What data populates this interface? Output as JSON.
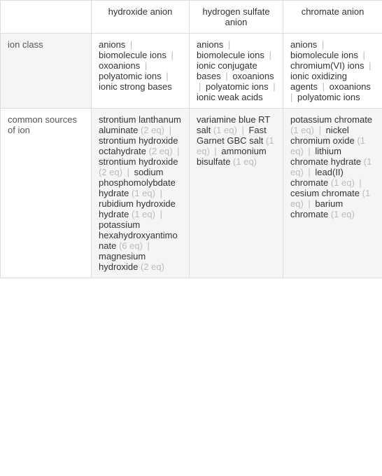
{
  "headers": {
    "col1": "hydroxide anion",
    "col2": "hydrogen sulfate anion",
    "col3": "chromate anion"
  },
  "rows": [
    {
      "label": "ion class",
      "cells": [
        [
          {
            "text": "anions"
          },
          {
            "text": "biomolecule ions"
          },
          {
            "text": "oxoanions"
          },
          {
            "text": "polyatomic ions"
          },
          {
            "text": "ionic strong bases"
          }
        ],
        [
          {
            "text": "anions"
          },
          {
            "text": "biomolecule ions"
          },
          {
            "text": "ionic conjugate bases"
          },
          {
            "text": "oxoanions"
          },
          {
            "text": "polyatomic ions"
          },
          {
            "text": "ionic weak acids"
          }
        ],
        [
          {
            "text": "anions"
          },
          {
            "text": "biomolecule ions"
          },
          {
            "text": "chromium(VI) ions"
          },
          {
            "text": "ionic oxidizing agents"
          },
          {
            "text": "oxoanions"
          },
          {
            "text": "polyatomic ions"
          }
        ]
      ]
    },
    {
      "label": "common sources of ion",
      "cells": [
        [
          {
            "text": "strontium lanthanum aluminate",
            "eq": "(2 eq)"
          },
          {
            "text": "strontium hydroxide octahydrate",
            "eq": "(2 eq)"
          },
          {
            "text": "strontium hydroxide",
            "eq": "(2 eq)"
          },
          {
            "text": "sodium phosphomolybdate hydrate",
            "eq": "(1 eq)"
          },
          {
            "text": "rubidium hydroxide hydrate",
            "eq": "(1 eq)"
          },
          {
            "text": "potassium hexahydroxyantimonate",
            "eq": "(6 eq)"
          },
          {
            "text": "magnesium hydroxide",
            "eq": "(2 eq)"
          }
        ],
        [
          {
            "text": "variamine blue RT salt",
            "eq": "(1 eq)"
          },
          {
            "text": "Fast Garnet GBC salt",
            "eq": "(1 eq)"
          },
          {
            "text": "ammonium bisulfate",
            "eq": "(1 eq)"
          }
        ],
        [
          {
            "text": "potassium chromate",
            "eq": "(1 eq)"
          },
          {
            "text": "nickel chromium oxide",
            "eq": "(1 eq)"
          },
          {
            "text": "lithium chromate hydrate",
            "eq": "(1 eq)"
          },
          {
            "text": "lead(II) chromate",
            "eq": "(1 eq)"
          },
          {
            "text": "cesium chromate",
            "eq": "(1 eq)"
          },
          {
            "text": "barium chromate",
            "eq": "(1 eq)"
          }
        ]
      ]
    }
  ],
  "colors": {
    "border": "#ddd",
    "row_header_bg": "#f5f5f5",
    "text": "#333",
    "muted": "#bbb"
  }
}
